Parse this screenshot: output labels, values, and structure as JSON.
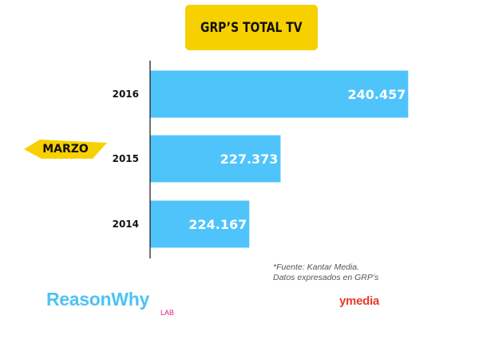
{
  "colors": {
    "bar": "#4fc4fb",
    "title_bg": "#f7d000",
    "marker_bg": "#f7d000",
    "axis": "#111111",
    "reason_logo": "#4dc3f0",
    "lab_logo": "#e8207a",
    "ymedia_logo": "#e83a2e"
  },
  "marker": {
    "text": "MARZO"
  },
  "source": {
    "line1": "*Fuente: Kantar Media.",
    "line2": "Datos expresados en GRP’s"
  },
  "logos": {
    "reason": "ReasonWhy",
    "lab": "LAB",
    "ymedia": "ymedia"
  },
  "chart_data": {
    "type": "bar",
    "orientation": "horizontal",
    "title": "GRP’S TOTAL TV",
    "categories": [
      "2016",
      "2015",
      "2014"
    ],
    "values": [
      240457,
      227373,
      224167
    ],
    "value_labels": [
      "240.457",
      "227.373",
      "224.167"
    ],
    "xlim": [
      214000,
      241000
    ],
    "grid": false,
    "legend": "none"
  }
}
